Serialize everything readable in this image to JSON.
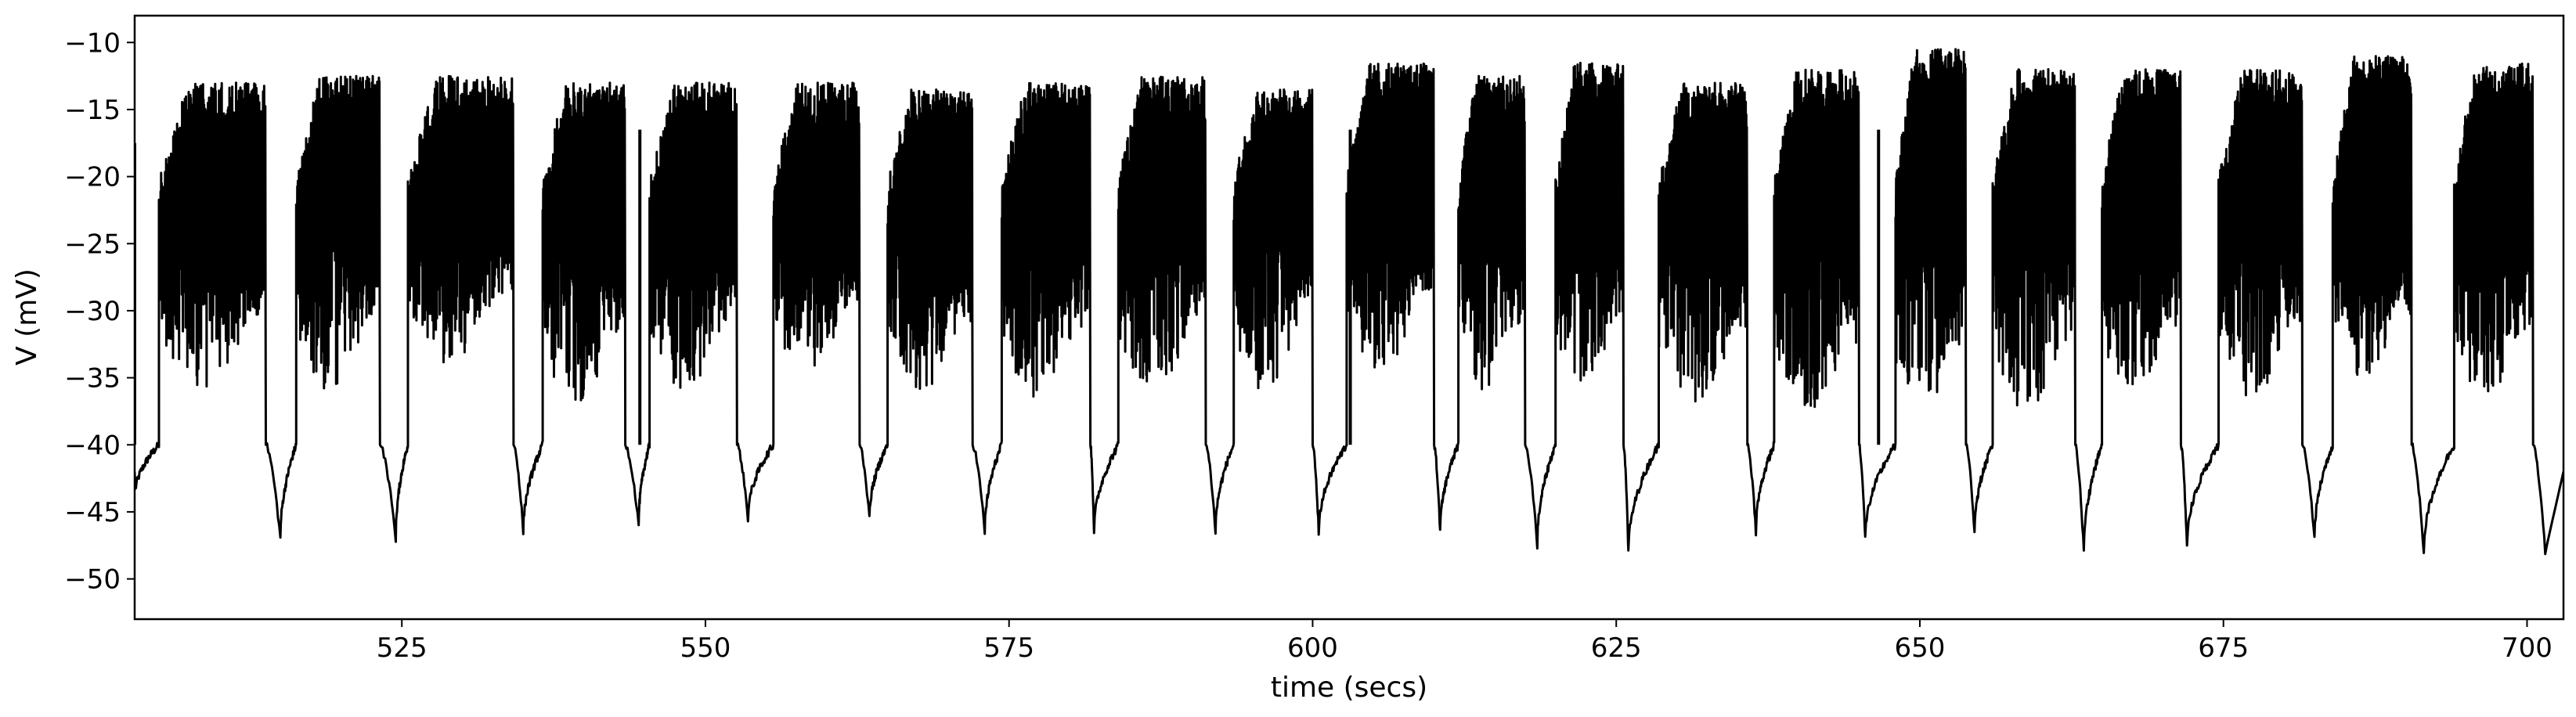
{
  "chart_data": {
    "type": "line",
    "title": "",
    "xlabel": "time (secs)",
    "ylabel": "V (mV)",
    "xlim": [
      503,
      703
    ],
    "ylim": [
      -53,
      -8
    ],
    "xticks": [
      525,
      550,
      575,
      600,
      625,
      650,
      675,
      700
    ],
    "yticks": [
      -10,
      -15,
      -20,
      -25,
      -30,
      -35,
      -40,
      -45,
      -50
    ],
    "xtick_labels": [
      "525",
      "550",
      "575",
      "600",
      "625",
      "650",
      "675",
      "700"
    ],
    "ytick_labels": [
      "−10",
      "−15",
      "−20",
      "−25",
      "−30",
      "−35",
      "−40",
      "−45",
      "−50"
    ],
    "grid": false,
    "line_color": "#000000",
    "bursts": [
      {
        "start": 505.0,
        "end": 513.8,
        "peak_top": -13.0,
        "trough_min": -36.0,
        "min_after": -47.0,
        "min_time": 515.0
      },
      {
        "start": 516.3,
        "end": 523.2,
        "peak_top": -12.5,
        "trough_min": -36.0,
        "min_after": -47.0,
        "min_time": 524.5
      },
      {
        "start": 525.5,
        "end": 534.2,
        "peak_top": -12.5,
        "trough_min": -34.0,
        "min_after": -46.5,
        "min_time": 535.0
      },
      {
        "start": 536.6,
        "end": 543.4,
        "peak_top": -13.0,
        "trough_min": -37.0,
        "min_after": -46.0,
        "min_time": 544.5
      },
      {
        "start": 545.4,
        "end": 552.6,
        "peak_top": -13.0,
        "trough_min": -36.0,
        "min_after": -45.5,
        "min_time": 553.5
      },
      {
        "start": 555.6,
        "end": 562.7,
        "peak_top": -13.0,
        "trough_min": -35.0,
        "min_after": -45.5,
        "min_time": 563.5
      },
      {
        "start": 565.0,
        "end": 572.0,
        "peak_top": -13.5,
        "trough_min": -36.0,
        "min_after": -46.5,
        "min_time": 573.0
      },
      {
        "start": 574.4,
        "end": 581.7,
        "peak_top": -13.0,
        "trough_min": -36.5,
        "min_after": -46.5,
        "min_time": 582.0
      },
      {
        "start": 584.0,
        "end": 591.2,
        "peak_top": -12.5,
        "trough_min": -36.0,
        "min_after": -46.5,
        "min_time": 592.0
      },
      {
        "start": 593.5,
        "end": 600.0,
        "peak_top": -13.5,
        "trough_min": -36.0,
        "min_after": -46.5,
        "min_time": 600.5
      },
      {
        "start": 602.8,
        "end": 610.0,
        "peak_top": -11.5,
        "trough_min": -34.5,
        "min_after": -46.5,
        "min_time": 610.5
      },
      {
        "start": 612.0,
        "end": 617.5,
        "peak_top": -12.5,
        "trough_min": -36.0,
        "min_after": -47.5,
        "min_time": 618.5
      },
      {
        "start": 620.0,
        "end": 625.6,
        "peak_top": -11.5,
        "trough_min": -36.0,
        "min_after": -48.0,
        "min_time": 626.0
      },
      {
        "start": 628.5,
        "end": 635.8,
        "peak_top": -13.0,
        "trough_min": -37.0,
        "min_after": -46.5,
        "min_time": 636.5
      },
      {
        "start": 638.0,
        "end": 645.0,
        "peak_top": -12.0,
        "trough_min": -37.5,
        "min_after": -47.0,
        "min_time": 645.5
      },
      {
        "start": 648.0,
        "end": 653.8,
        "peak_top": -10.5,
        "trough_min": -38.0,
        "min_after": -46.5,
        "min_time": 654.5
      },
      {
        "start": 656.0,
        "end": 662.8,
        "peak_top": -12.0,
        "trough_min": -37.5,
        "min_after": -48.0,
        "min_time": 663.5
      },
      {
        "start": 665.0,
        "end": 671.5,
        "peak_top": -12.0,
        "trough_min": -36.5,
        "min_after": -47.5,
        "min_time": 672.0
      },
      {
        "start": 674.6,
        "end": 681.5,
        "peak_top": -12.0,
        "trough_min": -36.5,
        "min_after": -47.0,
        "min_time": 682.5
      },
      {
        "start": 684.0,
        "end": 690.5,
        "peak_top": -11.0,
        "trough_min": -35.5,
        "min_after": -48.0,
        "min_time": 691.5
      },
      {
        "start": 694.0,
        "end": 700.5,
        "peak_top": -11.5,
        "trough_min": -36.5,
        "min_after": -48.0,
        "min_time": 701.5
      }
    ],
    "isolated_spikes": [
      {
        "x": 503.0,
        "y": -17.5
      },
      {
        "x": 544.6,
        "y": -16.5
      },
      {
        "x": 603.1,
        "y": -16.5
      },
      {
        "x": 646.6,
        "y": -16.5
      }
    ]
  }
}
